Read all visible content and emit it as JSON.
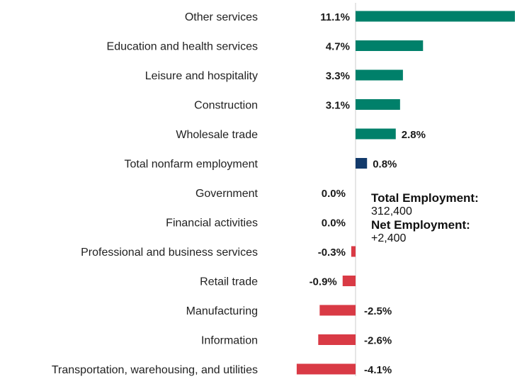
{
  "chart_data": {
    "type": "bar",
    "orientation": "horizontal",
    "categories": [
      "Other services",
      "Education and health services",
      "Leisure and hospitality",
      "Construction",
      "Wholesale trade",
      "Total nonfarm employment",
      "Government",
      "Financial activities",
      "Professional and business services",
      "Retail trade",
      "Manufacturing",
      "Information",
      "Transportation, warehousing, and utilities"
    ],
    "values": [
      11.1,
      4.7,
      3.3,
      3.1,
      2.8,
      0.8,
      0.0,
      0.0,
      -0.3,
      -0.9,
      -2.5,
      -2.6,
      -4.1
    ],
    "labels": [
      "11.1%",
      "4.7%",
      "3.3%",
      "3.1%",
      "2.8%",
      "0.8%",
      "0.0%",
      "0.0%",
      "-0.3%",
      "-0.9%",
      "-2.5%",
      "-2.6%",
      "-4.1%"
    ],
    "highlight_category": "Total nonfarm employment",
    "colors": {
      "positive": "#00806a",
      "negative": "#d93a45",
      "total": "#123a6b",
      "axis": "#cccccc"
    },
    "xlim": [
      -4.1,
      11.1
    ],
    "grid": false,
    "legend": "none"
  },
  "annotation": {
    "total_label": "Total Employment:",
    "total_value": "312,400",
    "net_label": "Net Employment:",
    "net_value": "+2,400"
  }
}
